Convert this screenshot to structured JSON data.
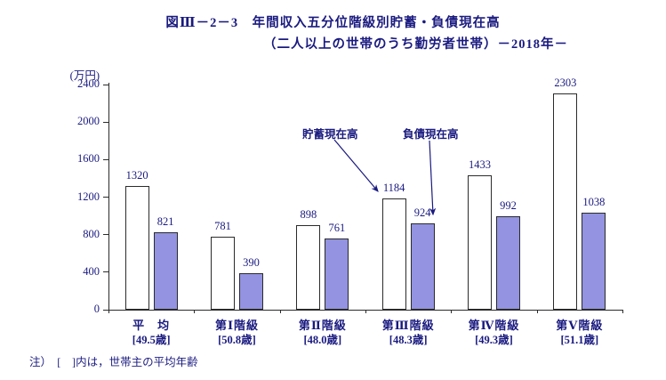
{
  "title": {
    "line1": "図Ⅲ－2－3　年間収入五分位階級別貯蓄・負債現在高",
    "line2": "（二人以上の世帯のうち勤労者世帯）－2018年－"
  },
  "unit_label": "(万円)",
  "note": "注）　[　]内は，世帯主の平均年齢",
  "colors": {
    "text": "#1a1a80",
    "bar_savings": "#ffffff",
    "bar_liabilities": "#9393e1",
    "bar_border": "#2b2b2b"
  },
  "chart_data": {
    "type": "bar",
    "categories": [
      "平　均",
      "第Ⅰ階級",
      "第Ⅱ階級",
      "第Ⅲ階級",
      "第Ⅳ階級",
      "第Ⅴ階級"
    ],
    "category_sublabels": [
      "[49.5歳]",
      "[50.8歳]",
      "[48.0歳]",
      "[48.3歳]",
      "[49.3歳]",
      "[51.1歳]"
    ],
    "series": [
      {
        "name": "貯蓄現在高",
        "values": [
          1320,
          781,
          898,
          1184,
          1433,
          2303
        ]
      },
      {
        "name": "負債現在高",
        "values": [
          821,
          390,
          761,
          924,
          992,
          1038
        ]
      }
    ],
    "title": "年間収入五分位階級別貯蓄・負債現在高（二人以上の世帯のうち勤労者世帯）2018年",
    "xlabel": "",
    "ylabel": "万円",
    "ylim": [
      0,
      2400
    ],
    "yticks": [
      0,
      400,
      800,
      1200,
      1600,
      2000,
      2400
    ],
    "grid": false,
    "legend_position": "annotated-arrows"
  }
}
